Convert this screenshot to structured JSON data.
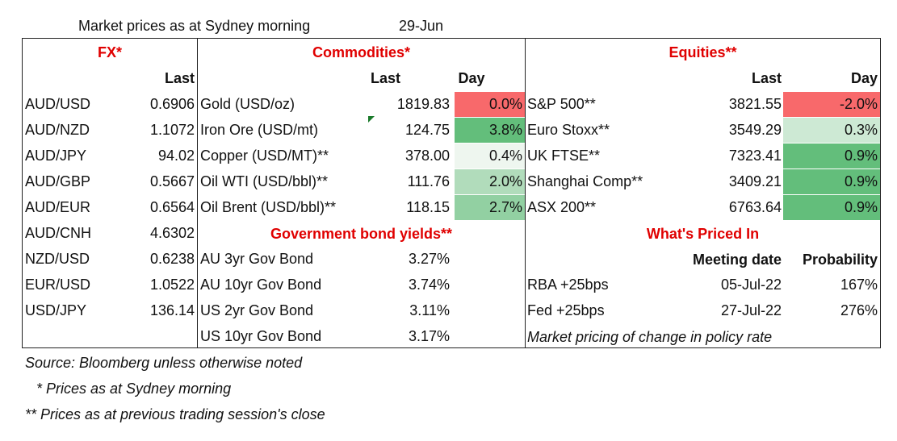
{
  "header": {
    "title": "Market prices as at Sydney morning",
    "date": "29-Jun"
  },
  "fx": {
    "heading": "FX*",
    "last_label": "Last",
    "rows": [
      {
        "pair": "AUD/USD",
        "last": "0.6906"
      },
      {
        "pair": "AUD/NZD",
        "last": "1.1072"
      },
      {
        "pair": "AUD/JPY",
        "last": "94.02"
      },
      {
        "pair": "AUD/GBP",
        "last": "0.5667"
      },
      {
        "pair": "AUD/EUR",
        "last": "0.6564"
      },
      {
        "pair": "AUD/CNH",
        "last": "4.6302"
      },
      {
        "pair": "NZD/USD",
        "last": "0.6238"
      },
      {
        "pair": "EUR/USD",
        "last": "1.0522"
      },
      {
        "pair": "USD/JPY",
        "last": "136.14"
      }
    ]
  },
  "commodities": {
    "heading": "Commodities*",
    "last_label": "Last",
    "day_label": "Day",
    "rows": [
      {
        "name": "Gold (USD/oz)",
        "last": "1819.83",
        "day": "0.0%",
        "color": "#f8696b"
      },
      {
        "name": "Iron Ore (USD/mt)",
        "last": "124.75",
        "day": "3.8%",
        "color": "#63be7b"
      },
      {
        "name": "Copper (USD/MT)**",
        "last": "378.00",
        "day": "0.4%",
        "color": "#eef6ef"
      },
      {
        "name": "Oil WTI (USD/bbl)**",
        "last": "111.76",
        "day": "2.0%",
        "color": "#b1dcbb"
      },
      {
        "name": "Oil Brent (USD/bbl)**",
        "last": "118.15",
        "day": "2.7%",
        "color": "#92d0a2"
      }
    ]
  },
  "bonds": {
    "heading": "Government bond yields**",
    "rows": [
      {
        "name": "AU 3yr Gov Bond",
        "value": "3.27%"
      },
      {
        "name": "AU 10yr Gov Bond",
        "value": "3.74%"
      },
      {
        "name": "US 2yr Gov Bond",
        "value": "3.11%"
      },
      {
        "name": "US 10yr Gov Bond",
        "value": "3.17%"
      }
    ]
  },
  "equities": {
    "heading": "Equities**",
    "last_label": "Last",
    "day_label": "Day",
    "rows": [
      {
        "name": "S&P 500**",
        "last": "3821.55",
        "day": "-2.0%",
        "color": "#f8696b"
      },
      {
        "name": "Euro Stoxx**",
        "last": "3549.29",
        "day": "0.3%",
        "color": "#cde9d4"
      },
      {
        "name": "UK FTSE**",
        "last": "7323.41",
        "day": "0.9%",
        "color": "#63be7b"
      },
      {
        "name": "Shanghai Comp**",
        "last": "3409.21",
        "day": "0.9%",
        "color": "#63be7b"
      },
      {
        "name": "ASX 200**",
        "last": "6763.64",
        "day": "0.9%",
        "color": "#63be7b"
      }
    ]
  },
  "priced_in": {
    "heading": "What's Priced In",
    "meeting_label": "Meeting date",
    "prob_label": "Probability",
    "rows": [
      {
        "name": "RBA +25bps",
        "date": "05-Jul-22",
        "prob": "167%"
      },
      {
        "name": "Fed +25bps",
        "date": "27-Jul-22",
        "prob": "276%"
      }
    ],
    "note": "Market pricing of change in policy rate"
  },
  "footnotes": [
    "Source: Bloomberg unless otherwise noted",
    "* Prices as at Sydney morning",
    "** Prices as at previous trading session's close"
  ]
}
